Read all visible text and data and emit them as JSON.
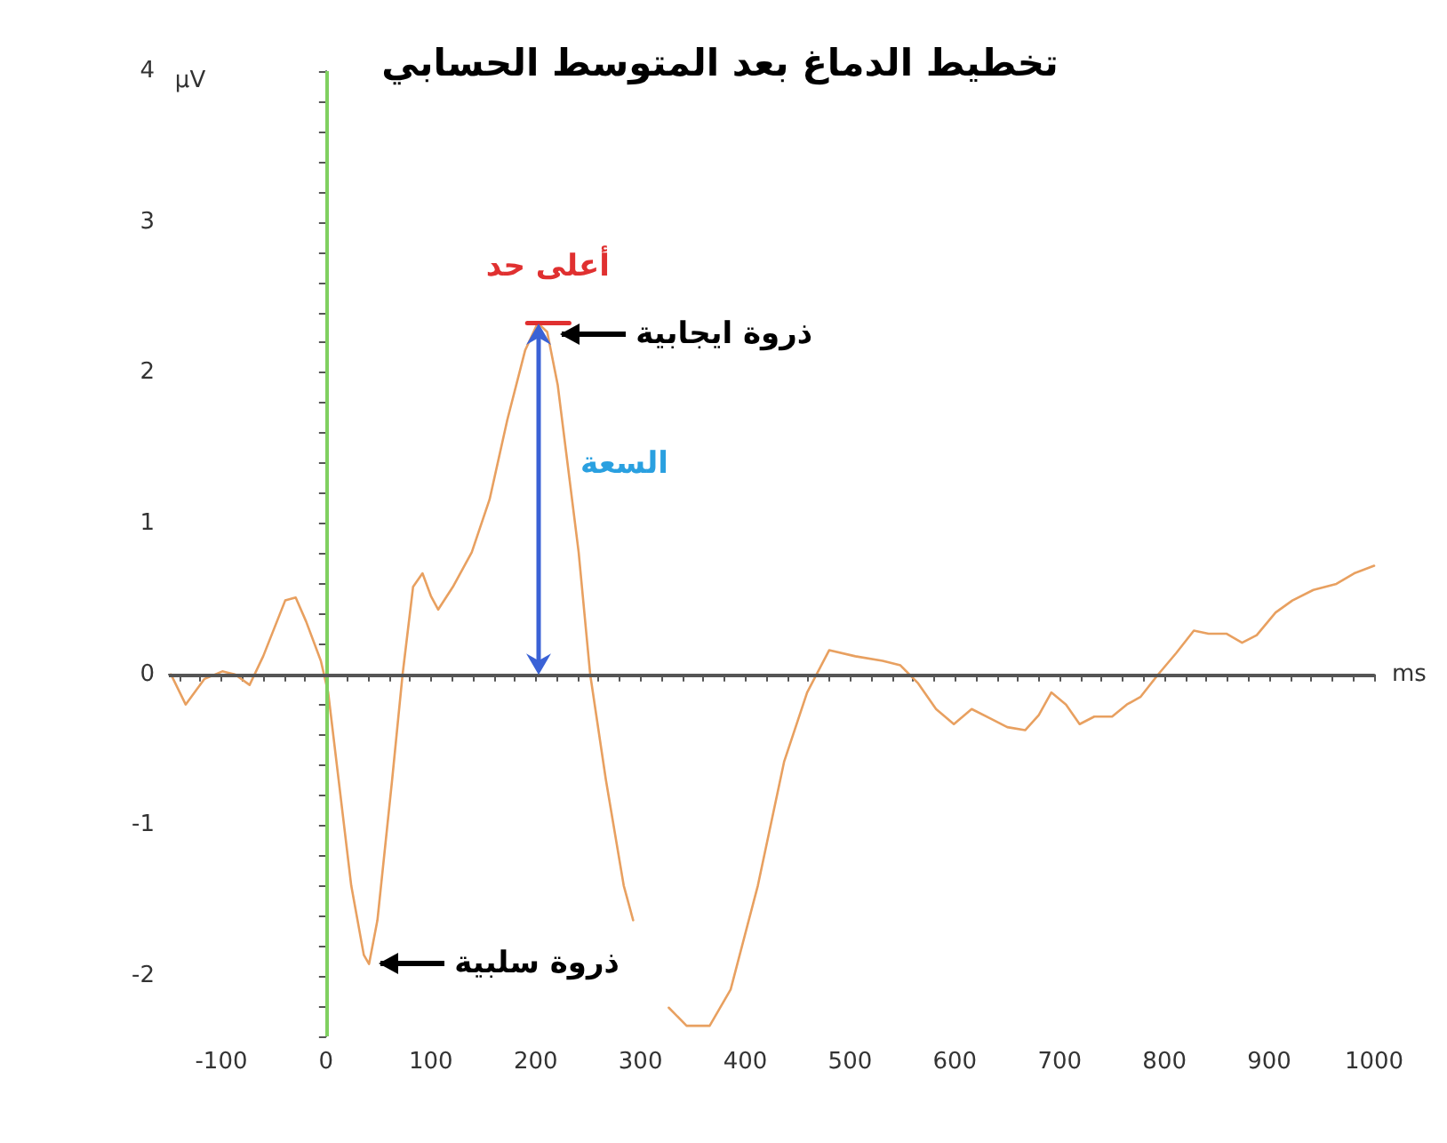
{
  "chart_data": {
    "type": "line",
    "title": "تخطيط الدماغ بعد المتوسط الحسابي",
    "xlabel": "ms",
    "ylabel": "µV",
    "xlim": [
      -150,
      1000
    ],
    "xticks": [
      {
        "value": -140,
        "label": null
      },
      {
        "value": -120,
        "label": null
      },
      -100,
      {
        "value": -80,
        "label": null
      },
      {
        "value": -60,
        "label": null
      },
      {
        "value": -40,
        "label": null
      },
      {
        "value": -20,
        "label": null
      },
      0,
      {
        "value": 20,
        "label": null
      },
      {
        "value": 40,
        "label": null
      },
      {
        "value": 60,
        "label": null
      },
      {
        "value": 80,
        "label": null
      },
      100,
      {
        "value": 120,
        "label": null
      },
      {
        "value": 140,
        "label": null
      },
      {
        "value": 160,
        "label": null
      },
      {
        "value": 180,
        "label": null
      },
      200,
      {
        "value": 220,
        "label": null
      },
      {
        "value": 240,
        "label": null
      },
      {
        "value": 260,
        "label": null
      },
      {
        "value": 280,
        "label": null
      },
      300,
      {
        "value": 320,
        "label": null
      },
      {
        "value": 340,
        "label": null
      },
      {
        "value": 360,
        "label": null
      },
      {
        "value": 380,
        "label": null
      },
      400,
      {
        "value": 420,
        "label": null
      },
      {
        "value": 440,
        "label": null
      },
      {
        "value": 460,
        "label": null
      },
      {
        "value": 480,
        "label": null
      },
      500,
      {
        "value": 520,
        "label": null
      },
      {
        "value": 540,
        "label": null
      },
      {
        "value": 560,
        "label": null
      },
      {
        "value": 580,
        "label": null
      },
      600,
      {
        "value": 620,
        "label": null
      },
      {
        "value": 640,
        "label": null
      },
      {
        "value": 660,
        "label": null
      },
      {
        "value": 680,
        "label": null
      },
      700,
      {
        "value": 720,
        "label": null
      },
      {
        "value": 740,
        "label": null
      },
      {
        "value": 760,
        "label": null
      },
      {
        "value": 780,
        "label": null
      },
      800,
      {
        "value": 820,
        "label": null
      },
      {
        "value": 840,
        "label": null
      },
      {
        "value": 860,
        "label": null
      },
      {
        "value": 880,
        "label": null
      },
      900,
      {
        "value": 920,
        "label": null
      },
      {
        "value": 940,
        "label": null
      },
      {
        "value": 960,
        "label": null
      },
      {
        "value": 980,
        "label": null
      },
      1000
    ],
    "ylim": [
      -2.4,
      4
    ],
    "yticks": [
      {
        "value": -2.4,
        "label": null
      },
      {
        "value": -2.2,
        "label": null
      },
      -2,
      {
        "value": -1.8,
        "label": null
      },
      {
        "value": -1.6,
        "label": null
      },
      {
        "value": -1.4,
        "label": null
      },
      {
        "value": -1.2,
        "label": null
      },
      -1,
      {
        "value": -0.8,
        "label": null
      },
      {
        "value": -0.6,
        "label": null
      },
      {
        "value": -0.4,
        "label": null
      },
      {
        "value": -0.2,
        "label": null
      },
      0,
      {
        "value": 0.2,
        "label": null
      },
      {
        "value": 0.4,
        "label": null
      },
      {
        "value": 0.6,
        "label": null
      },
      {
        "value": 0.8,
        "label": null
      },
      1,
      {
        "value": 1.2,
        "label": null
      },
      {
        "value": 1.4,
        "label": null
      },
      {
        "value": 1.6,
        "label": null
      },
      {
        "value": 1.8,
        "label": null
      },
      2,
      {
        "value": 2.2,
        "label": null
      },
      {
        "value": 2.4,
        "label": null
      },
      {
        "value": 2.6,
        "label": null
      },
      {
        "value": 2.8,
        "label": null
      },
      3,
      {
        "value": 3.2,
        "label": null
      },
      {
        "value": 3.4,
        "label": null
      },
      {
        "value": 3.6,
        "label": null
      },
      {
        "value": 3.8,
        "label": null
      },
      4
    ],
    "legend": false,
    "marker": "none",
    "series": [
      {
        "color": "#e8a060",
        "x": [
          -148,
          -134,
          -116,
          -99,
          -87,
          -73,
          -60,
          -39,
          -29,
          -19,
          -5,
          2,
          12,
          24,
          36,
          41,
          49,
          63,
          73,
          83,
          92,
          100,
          107,
          121,
          139,
          156,
          173,
          190,
          202,
          211,
          221,
          241,
          252,
          267,
          284,
          293,
          310,
          327,
          344,
          366,
          386,
          412,
          437,
          459,
          480,
          505,
          531,
          548,
          565,
          582,
          599,
          616,
          633,
          650,
          667,
          680,
          692,
          706,
          719,
          733,
          750,
          764,
          777,
          794,
          811,
          828,
          842,
          859,
          874,
          888,
          906,
          922,
          942,
          964,
          981,
          1000
        ],
        "values": [
          0,
          -0.2,
          -0.03,
          0.02,
          0,
          -0.07,
          0.12,
          0.49,
          0.51,
          0.35,
          0.09,
          -0.12,
          -0.7,
          -1.4,
          -1.86,
          -1.92,
          -1.63,
          -0.7,
          0,
          0.58,
          0.67,
          0.52,
          0.43,
          0.58,
          0.81,
          1.16,
          1.69,
          2.15,
          2.33,
          2.27,
          1.92,
          0.81,
          0,
          -0.7,
          -1.4,
          -1.63,
          null,
          -2.21,
          -2.33,
          -2.33,
          -2.09,
          -1.4,
          -0.58,
          -0.12,
          0.16,
          0.12,
          0.09,
          0.06,
          -0.06,
          -0.23,
          -0.33,
          -0.23,
          -0.29,
          -0.35,
          -0.37,
          -0.27,
          -0.12,
          -0.2,
          -0.33,
          -0.28,
          -0.28,
          -0.2,
          -0.15,
          0,
          0.14,
          0.29,
          0.27,
          0.27,
          0.21,
          0.26,
          0.41,
          0.49,
          0.56,
          0.6,
          0.67,
          0.72
        ]
      },
      {
        "name": "أعلى حد",
        "color": "#e03030",
        "x": [
          192,
          232
        ],
        "values": [
          2.33,
          2.33
        ]
      }
    ],
    "ref_lines": [
      {
        "axis": "x",
        "value": 0,
        "color": "#80d060"
      },
      {
        "axis": "y",
        "value": 0,
        "color": "#555555"
      }
    ],
    "annotations": [
      {
        "text": "ذروة ايجابية",
        "x": 214,
        "y": 2.25
      },
      {
        "text": "ذروة سلبية",
        "x": 41,
        "y": -1.92
      },
      "السعة"
    ]
  }
}
